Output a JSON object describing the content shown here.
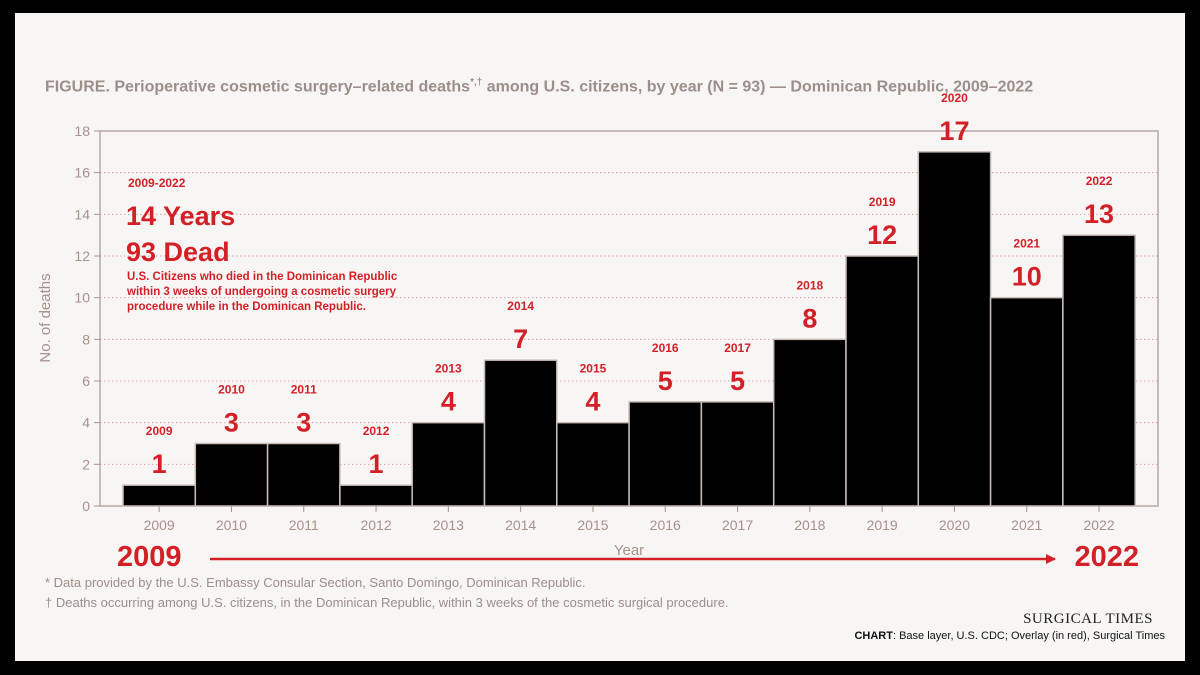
{
  "title": "FIGURE. Perioperative cosmetic surgery–related deaths",
  "title_marks": "*,†",
  "title_rest": " among U.S. citizens, by year (N = 93) — Dominican Republic, 2009–2022",
  "colors": {
    "bar": "#000000",
    "bar_edge": "#c9bcb6",
    "accent": "#d32027",
    "axis": "#a9908a",
    "grid": "#e2a2a2",
    "muted": "#9c8e89"
  },
  "chart_data": {
    "type": "bar",
    "xlabel": "Year",
    "ylabel": "No. of deaths",
    "ylim": [
      0,
      18
    ],
    "yticks": [
      0,
      2,
      4,
      6,
      8,
      10,
      12,
      14,
      16,
      18
    ],
    "categories": [
      "2009",
      "2010",
      "2011",
      "2012",
      "2013",
      "2014",
      "2015",
      "2016",
      "2017",
      "2018",
      "2019",
      "2020",
      "2021",
      "2022"
    ],
    "values": [
      1,
      3,
      3,
      1,
      4,
      7,
      4,
      5,
      5,
      8,
      12,
      17,
      10,
      13
    ],
    "grid": "horizontal dotted",
    "legend": "none"
  },
  "overlay": {
    "range_label": "2009-2022",
    "headline_years": "14 Years",
    "headline_dead": "93 Dead",
    "description": [
      "U.S. Citizens who died in the Dominican Republic",
      "within 3 weeks of undergoing a cosmetic surgery",
      "procedure while in the Dominican Republic."
    ],
    "timeline_start": "2009",
    "timeline_end": "2022"
  },
  "footnotes": [
    "* Data provided by the U.S. Embassy Consular Section, Santo Domingo, Dominican Republic.",
    "† Deaths occurring among U.S. citizens, in the Dominican Republic, within 3 weeks of the cosmetic surgical procedure."
  ],
  "brand": "SURGICAL TIMES",
  "credit_label": "CHART",
  "credit_text": ": Base layer, U.S. CDC; Overlay (in red), Surgical Times"
}
